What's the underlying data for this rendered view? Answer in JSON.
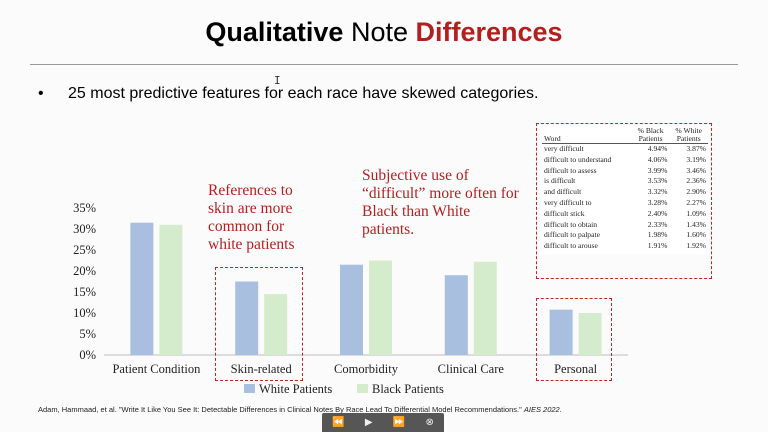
{
  "slide": {
    "title_bold": "Qualitative",
    "title_mid": " Note ",
    "title_red": "Differences",
    "bullet_mark": "•",
    "bullet_text": "25 most predictive features for each race have skewed categories.",
    "annotation_skin": [
      "References to",
      "skin are more",
      "common for",
      "white patients"
    ],
    "annotation_difficult": [
      "Subjective use of",
      "“difficult” more often for",
      "Black than White",
      "patients."
    ],
    "citation_main": "Adam, Hammaad, et al. \"Write It Like You See It: Detectable Differences in Clinical Notes By Race Lead To Differential Model Recommendations.\" ",
    "citation_venue": "AIES 2022.",
    "cursor_glyph": "I"
  },
  "table": {
    "headers": [
      "Word",
      "% Black Patients",
      "% White Patients"
    ],
    "header_black": [
      "% Black",
      "Patients"
    ],
    "header_white": [
      "% White",
      "Patients"
    ],
    "rows": [
      [
        "very difficult",
        "4.94%",
        "3.87%"
      ],
      [
        "difficult to understand",
        "4.06%",
        "3.19%"
      ],
      [
        "difficult to assess",
        "3.99%",
        "3.46%"
      ],
      [
        "is difficult",
        "3.53%",
        "2.36%"
      ],
      [
        "and difficult",
        "3.32%",
        "2.90%"
      ],
      [
        "very difficult to",
        "3.28%",
        "2.27%"
      ],
      [
        "difficult stick",
        "2.40%",
        "1.09%"
      ],
      [
        "difficult to obtain",
        "2.33%",
        "1.43%"
      ],
      [
        "difficult to palpate",
        "1.98%",
        "1.60%"
      ],
      [
        "difficult to arouse",
        "1.91%",
        "1.92%"
      ]
    ]
  },
  "chart_data": {
    "type": "bar",
    "categories": [
      "Patient Condition",
      "Skin-related",
      "Comorbidity",
      "Clinical Care",
      "Personal"
    ],
    "series": [
      {
        "name": "White Patients",
        "values": [
          31.5,
          17.5,
          21.5,
          19.0,
          10.8
        ],
        "color": "#a9bfe0"
      },
      {
        "name": "Black Patients",
        "values": [
          31.0,
          14.5,
          22.5,
          22.2,
          10.0
        ],
        "color": "#d4eccc"
      }
    ],
    "ylim": [
      0,
      35
    ],
    "yticks": [
      "0%",
      "5%",
      "10%",
      "15%",
      "20%",
      "25%",
      "30%",
      "35%"
    ],
    "grid": false,
    "legend": "bottom",
    "highlighted_categories": [
      "Skin-related",
      "Personal"
    ]
  },
  "player": {
    "rewind_icon": "⏪",
    "play_icon": "▶",
    "forward_icon": "⏩",
    "close_icon": "⊗"
  }
}
